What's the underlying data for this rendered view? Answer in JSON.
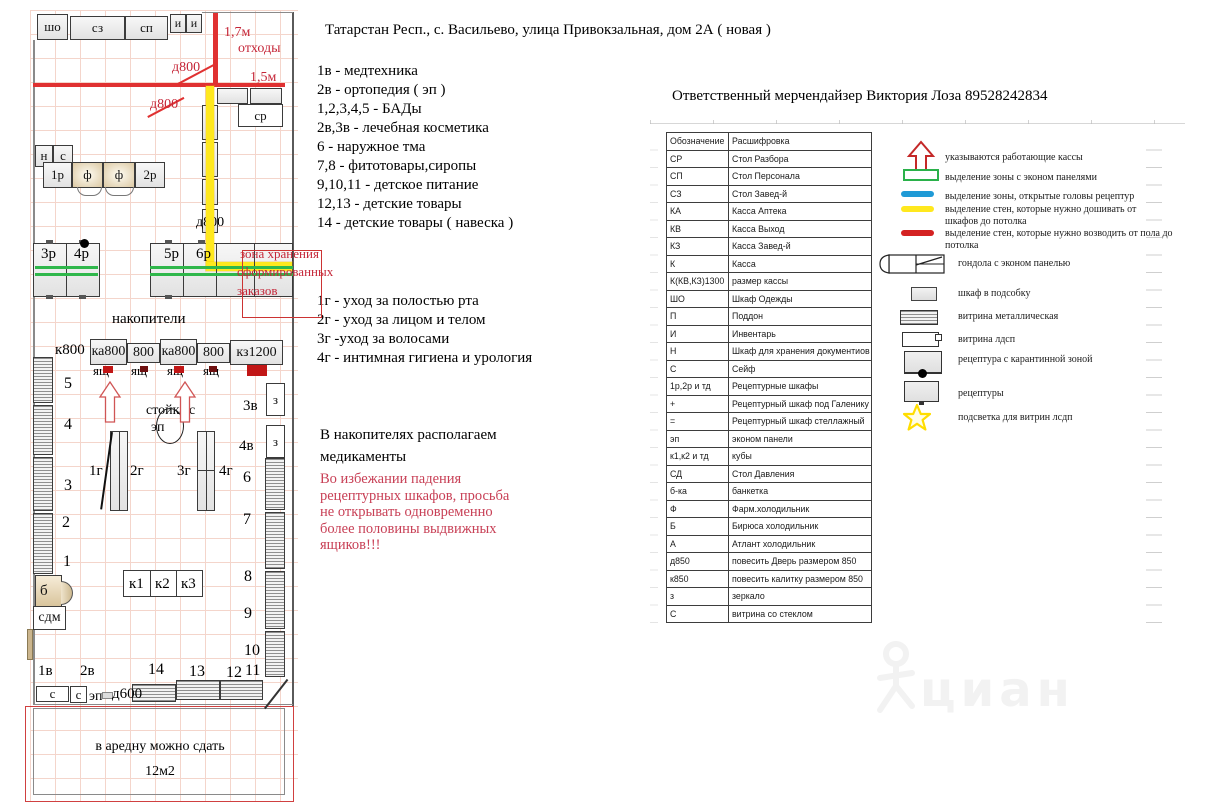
{
  "header": {
    "address": "Татарстан Респ., с. Васильево, улица Привокзальная, дом 2А ( новая )",
    "responsible": "Ответственный мерчендайзер Виктория Лоза 89528242834"
  },
  "zones_list": [
    "1в - медтехника",
    "2в - ортопедия ( эп )",
    "1,2,3,4,5 - БАДы",
    "2в,3в - лечебная косметика",
    "6 - наружное тма",
    "7,8 - фитотовары,сиропы",
    "9,10,11 - детское питание",
    "12,13 - детские товары",
    "14 - детские товары ( навеска )"
  ],
  "care_list": [
    "1г - уход за полостью рта",
    "2г - уход за лицом и телом",
    "3г -уход за волосами",
    "4г - интимная гигиена и урология"
  ],
  "note_lines": [
    "В накопителях располагаем",
    "медикаменты"
  ],
  "warning_lines": [
    "Во избежании падения",
    "рецептурных шкафов, просьба",
    "не открывать одновременно",
    "более половины выдвижных",
    "ящиков!!!"
  ],
  "rent_box": {
    "line1": "в аредну можно сдать",
    "line2": "12м2"
  },
  "plan_labels": {
    "sho": "шо",
    "sz": "сз",
    "sp": "сп",
    "i1": "и",
    "i2": "и",
    "dim17": "1,7м",
    "waste": "отходы",
    "d800a": "д800",
    "d800b": "д800",
    "dim15": "1,5м",
    "sr": "ср",
    "n": "н",
    "s0": "с",
    "r1": "1р",
    "f1": "ф",
    "f2": "ф",
    "r2": "2р",
    "r3": "3р",
    "r4": "4р",
    "r5": "5р",
    "r6": "6р",
    "zone1": "зона хранения",
    "zone2": "сформированных",
    "zone3": "заказов",
    "d800c": "д800",
    "nakop": "накопители",
    "k800": "к800",
    "ka800a": "ка800",
    "v800a": "800",
    "ka800b": "ка800",
    "v800b": "800",
    "kz1200": "кз1200",
    "yash1": "ящ",
    "yash2": "ящ",
    "yash3": "ящ",
    "yash4": "ящ",
    "stand": "стойка с",
    "ep1": "эп",
    "v3": "3в",
    "z1": "з",
    "v4": "4в",
    "z2": "з",
    "n1": "1",
    "n2": "2",
    "n3": "3",
    "n4": "4",
    "n5": "5",
    "g1": "1г",
    "g2": "2г",
    "g3": "3г",
    "g4": "4г",
    "n6": "6",
    "n7": "7",
    "n8": "8",
    "n9": "9",
    "n10": "10",
    "n11": "11",
    "n12": "12",
    "n13": "13",
    "n14": "14",
    "b": "б",
    "sdm": "сдм",
    "k1": "к1",
    "k2": "к2",
    "k3": "к3",
    "v1": "1в",
    "v2": "2в",
    "s1": "с",
    "s2": "с",
    "ep2": "эп",
    "d600": "д600"
  },
  "table": {
    "headers": [
      "Обозначение",
      "Расшифровка"
    ],
    "rows": [
      [
        "СР",
        "Стол Разбора"
      ],
      [
        "СП",
        "Стол Персонала"
      ],
      [
        "СЗ",
        "Стол Завед-й"
      ],
      [
        "КА",
        "Касса Аптека"
      ],
      [
        "КВ",
        "Касса Выход"
      ],
      [
        "КЗ",
        "Касса Завед-й"
      ],
      [
        "К",
        "Касса"
      ],
      [
        "К(КВ,КЗ)1300",
        "размер кассы"
      ],
      [
        "ШО",
        "Шкаф Одежды"
      ],
      [
        "П",
        "Поддон"
      ],
      [
        "И",
        "Инвентарь"
      ],
      [
        "Н",
        "Шкаф для хранения документиов"
      ],
      [
        "С",
        "Сейф"
      ],
      [
        "1р,2р и тд",
        "Рецептурные шкафы"
      ],
      [
        "+",
        "Рецептурный шкаф под Галенику"
      ],
      [
        "=",
        "Рецептурный шкаф стеллажный"
      ],
      [
        "эп",
        "эконом панели"
      ],
      [
        "к1,к2 и тд",
        "кубы"
      ],
      [
        "СД",
        "Стол Давления"
      ],
      [
        "б-ка",
        "банкетка"
      ],
      [
        "Ф",
        "Фарм.холодильник"
      ],
      [
        "Б",
        "Бирюса холодильник"
      ],
      [
        "А",
        "Атлант холодильник"
      ],
      [
        "д850",
        "повесить Дверь размером 850"
      ],
      [
        "к850",
        "повесить калитку размером 850"
      ],
      [
        "з",
        "зеркало"
      ],
      [
        "С",
        "витрина со стеклом"
      ]
    ]
  },
  "legend_items": [
    {
      "icon": "up-arrow-icon",
      "text": "указываются работающие кассы"
    },
    {
      "icon": "green-zone-icon",
      "text": "выделение зоны  с эконом панелями"
    },
    {
      "icon": "blue-line-icon",
      "text": "выделение зоны, открытые головы рецептур"
    },
    {
      "icon": "yellow-line-icon",
      "text": "выделение стен, которые нужно дошивать от шкафов до потолка"
    },
    {
      "icon": "red-line-icon",
      "text": "выделение стен, которые нужно возводить от пола до потолка"
    },
    {
      "icon": "gondola-icon",
      "text": "гондола с эконом панелью"
    },
    {
      "icon": "cabinet-icon",
      "text": "шкаф в подсобку"
    },
    {
      "icon": "metal-showcase-icon",
      "text": "витрина металлическая"
    },
    {
      "icon": "ldsp-showcase-icon",
      "text": "витрина лдсп"
    },
    {
      "icon": "quarantine-icon",
      "text": "рецептура с карантинной зоной"
    },
    {
      "icon": "receptura-icon",
      "text": "рецептуры"
    },
    {
      "icon": "star-icon",
      "text": "подсветка для витрин лсдп"
    }
  ],
  "colors": {
    "wall_red": "#e03131",
    "wall_yellow": "#ffe81e",
    "zone_green": "#2fb74b",
    "zone_blue": "#1f9ad6",
    "grid_pink": "#f4d5cb",
    "warning_red": "#c84056"
  },
  "watermark": {
    "text": "циан"
  }
}
